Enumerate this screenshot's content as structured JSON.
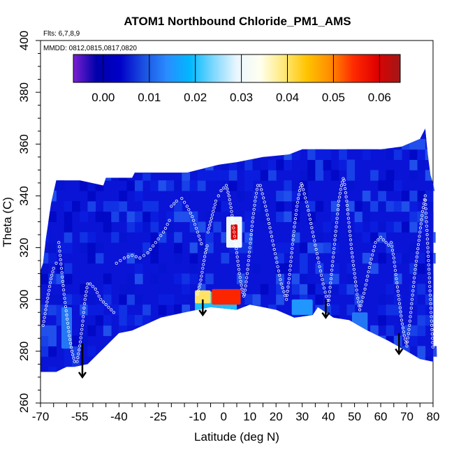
{
  "chart_data": {
    "type": "heatmap",
    "title": "ATOM1 Northbound Chloride_PM1_AMS",
    "flights_label": "Flts: 6,7,8,9",
    "dates_label": "MMDD: 0812,0815,0817,0820",
    "xlabel": "Latitude (deg N)",
    "ylabel": "Theta (C)",
    "xlim": [
      -70,
      80
    ],
    "ylim": [
      260,
      400
    ],
    "xticks": [
      -70,
      -55,
      -40,
      -25,
      -10,
      0,
      10,
      20,
      30,
      40,
      50,
      60,
      70,
      80
    ],
    "xtick_labels": [
      "-70",
      "-55",
      "-40",
      "-25",
      "-10",
      "0",
      "10",
      "20",
      "30",
      "40",
      "50",
      "60",
      "70",
      "80"
    ],
    "yticks": [
      260,
      280,
      300,
      320,
      340,
      360,
      380,
      400
    ],
    "ytick_labels": [
      "260",
      "280",
      "300",
      "320",
      "340",
      "360",
      "380",
      "400"
    ],
    "colorbar": {
      "ticks": [
        0.0,
        0.01,
        0.02,
        0.03,
        0.04,
        0.05,
        0.06
      ],
      "tick_labels": [
        "0.00",
        "0.01",
        "0.02",
        "0.03",
        "0.04",
        "0.05",
        "0.06"
      ],
      "range": [
        -0.0065,
        0.0645
      ],
      "colors": [
        "#7a1fd0",
        "#0000aa",
        "#0000c8",
        "#1a4fe0",
        "#2a8cff",
        "#00b8ff",
        "#7fd8ff",
        "#eaf6ff",
        "#fffff0",
        "#ffe97a",
        "#ffc400",
        "#ff8c00",
        "#ff2a00",
        "#e00000",
        "#a01818"
      ]
    },
    "domain": {
      "top_theta": [
        [
          -70,
          311
        ],
        [
          -69,
          314
        ],
        [
          -68,
          323
        ],
        [
          -66,
          337
        ],
        [
          -64,
          346
        ],
        [
          -55,
          346
        ],
        [
          -46,
          344
        ],
        [
          -45,
          347
        ],
        [
          -35,
          347
        ],
        [
          -34,
          349
        ],
        [
          -20,
          349
        ],
        [
          -14,
          349
        ],
        [
          -10,
          350
        ],
        [
          -2,
          352
        ],
        [
          5,
          353
        ],
        [
          15,
          355
        ],
        [
          25,
          356
        ],
        [
          30,
          358
        ],
        [
          38,
          358
        ],
        [
          50,
          358
        ],
        [
          60,
          358
        ],
        [
          68,
          359
        ],
        [
          75,
          362
        ],
        [
          77,
          366
        ],
        [
          78,
          356
        ],
        [
          79,
          348
        ],
        [
          80,
          345
        ],
        [
          81,
          340
        ],
        [
          81,
          300
        ],
        [
          81.5,
          277
        ]
      ],
      "bottom_theta": [
        [
          -70,
          272
        ],
        [
          -64,
          272
        ],
        [
          -60,
          274
        ],
        [
          -57,
          274
        ],
        [
          -52,
          275
        ],
        [
          -40,
          287
        ],
        [
          -35,
          288
        ],
        [
          -24,
          293
        ],
        [
          -15,
          295
        ],
        [
          -5,
          297
        ],
        [
          5,
          296
        ],
        [
          10,
          298
        ],
        [
          20,
          296
        ],
        [
          27,
          293
        ],
        [
          34,
          294
        ],
        [
          36,
          297
        ],
        [
          42,
          293
        ],
        [
          48,
          292
        ],
        [
          55,
          288
        ],
        [
          63,
          284
        ],
        [
          70,
          280
        ],
        [
          75,
          277
        ],
        [
          80,
          276
        ],
        [
          81.5,
          277
        ]
      ]
    },
    "hotspots": [
      {
        "lat": 1,
        "theta": 301,
        "value": 0.055,
        "extent_lat": 11,
        "extent_theta": 3
      },
      {
        "lat": -8,
        "theta": 301,
        "value": 0.04,
        "extent_lat": 6,
        "extent_theta": 2.5
      },
      {
        "lat": 4,
        "theta": 326,
        "value": 0.06,
        "extent_lat": 2.5,
        "extent_theta": 3
      },
      {
        "lat": 4,
        "theta": 326,
        "value": 0.03,
        "extent_lat": 6,
        "extent_theta": 6
      },
      {
        "lat": -3,
        "theta": 298,
        "value": 0.02,
        "extent_lat": 16,
        "extent_theta": 5
      },
      {
        "lat": 30,
        "theta": 297,
        "value": 0.015,
        "extent_lat": 8,
        "extent_theta": 3
      },
      {
        "lat": -60,
        "theta": 289,
        "value": 0.012,
        "extent_lat": 4,
        "extent_theta": 8
      },
      {
        "lat": 52,
        "theta": 291,
        "value": 0.012,
        "extent_lat": 6,
        "extent_theta": 4
      }
    ],
    "arrows": [
      {
        "lat": -54,
        "theta_top": 283,
        "theta_tip": 270
      },
      {
        "lat": -8,
        "theta_top": 300,
        "theta_tip": 294
      },
      {
        "lat": 39,
        "theta_top": 300,
        "theta_tip": 293
      },
      {
        "lat": 67,
        "theta_top": 287,
        "theta_tip": 279
      }
    ],
    "flight_tracks": [
      {
        "lats": [
          -69,
          -68,
          -67,
          -66,
          -65,
          -64,
          -63
        ],
        "thetas": [
          290,
          296,
          302,
          308,
          312,
          314,
          316
        ]
      },
      {
        "lats": [
          -63,
          -62,
          -61,
          -60,
          -59,
          -58,
          -57,
          -56
        ],
        "thetas": [
          322,
          312,
          302,
          294,
          286,
          280,
          276,
          274
        ]
      },
      {
        "lats": [
          -56,
          -55,
          -54,
          -53,
          -52,
          -51
        ],
        "thetas": [
          276,
          282,
          290,
          300,
          306,
          308
        ]
      },
      {
        "lats": [
          -51,
          -49,
          -47,
          -45,
          -43,
          -41
        ],
        "thetas": [
          306,
          304,
          300,
          298,
          296,
          294
        ]
      },
      {
        "lats": [
          -41,
          -38,
          -35,
          -32,
          -29,
          -26,
          -23,
          -20
        ],
        "thetas": [
          314,
          316,
          317,
          316,
          318,
          322,
          326,
          332
        ]
      },
      {
        "lats": [
          -20,
          -18,
          -16,
          -14,
          -12,
          -10,
          -8
        ],
        "thetas": [
          336,
          338,
          339,
          336,
          332,
          326,
          320
        ]
      },
      {
        "lats": [
          -10,
          -9,
          -8,
          -7,
          -6
        ],
        "thetas": [
          302,
          306,
          312,
          318,
          322
        ]
      },
      {
        "lats": [
          -6,
          -5,
          -4,
          -3,
          -2,
          -1,
          0,
          1
        ],
        "thetas": [
          326,
          330,
          334,
          338,
          340,
          342,
          343,
          344
        ]
      },
      {
        "lats": [
          1,
          2,
          3,
          4,
          5,
          6,
          7,
          8
        ],
        "thetas": [
          344,
          340,
          334,
          326,
          318,
          310,
          304,
          300
        ]
      },
      {
        "lats": [
          8,
          9,
          10,
          11,
          12,
          13,
          14
        ],
        "thetas": [
          302,
          310,
          320,
          330,
          338,
          344,
          346
        ]
      },
      {
        "lats": [
          14,
          16,
          18,
          20,
          22,
          24
        ],
        "thetas": [
          344,
          336,
          326,
          316,
          306,
          300
        ]
      },
      {
        "lats": [
          24,
          25,
          26,
          27,
          28,
          29,
          30
        ],
        "thetas": [
          300,
          308,
          318,
          328,
          336,
          342,
          346
        ]
      },
      {
        "lats": [
          30,
          32,
          34,
          36,
          38,
          40
        ],
        "thetas": [
          344,
          336,
          326,
          316,
          306,
          298
        ]
      },
      {
        "lats": [
          40,
          41,
          42,
          43,
          44,
          45,
          46
        ],
        "thetas": [
          298,
          308,
          318,
          328,
          338,
          344,
          348
        ]
      },
      {
        "lats": [
          46,
          47,
          48,
          49,
          50,
          51,
          52
        ],
        "thetas": [
          346,
          338,
          328,
          318,
          310,
          302,
          296
        ]
      },
      {
        "lats": [
          52,
          54,
          56,
          58,
          60,
          62,
          64
        ],
        "thetas": [
          296,
          304,
          314,
          322,
          324,
          322,
          320
        ]
      },
      {
        "lats": [
          64,
          65,
          66,
          67,
          68,
          69,
          70
        ],
        "thetas": [
          322,
          316,
          308,
          300,
          292,
          286,
          282
        ]
      },
      {
        "lats": [
          70,
          71,
          72,
          73,
          74,
          75,
          76,
          77
        ],
        "thetas": [
          282,
          290,
          300,
          310,
          318,
          326,
          334,
          340
        ]
      },
      {
        "lats": [
          77,
          78,
          79,
          80
        ],
        "thetas": [
          340,
          320,
          300,
          280
        ]
      }
    ]
  }
}
